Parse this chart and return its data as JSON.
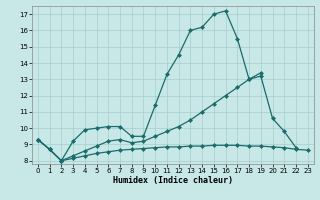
{
  "xlabel": "Humidex (Indice chaleur)",
  "bg_color": "#c8e8e8",
  "grid_color": "#a8cccc",
  "line_color": "#1a6b6b",
  "xlim": [
    -0.5,
    23.5
  ],
  "ylim": [
    7.8,
    17.5
  ],
  "xticks": [
    0,
    1,
    2,
    3,
    4,
    5,
    6,
    7,
    8,
    9,
    10,
    11,
    12,
    13,
    14,
    15,
    16,
    17,
    18,
    19,
    20,
    21,
    22,
    23
  ],
  "yticks": [
    8,
    9,
    10,
    11,
    12,
    13,
    14,
    15,
    16,
    17
  ],
  "line1_x": [
    0,
    1,
    2,
    3,
    4,
    5,
    6,
    7,
    8,
    9,
    10,
    11,
    12,
    13,
    14,
    15,
    16,
    17,
    18,
    19
  ],
  "line1_y": [
    9.3,
    8.7,
    8.0,
    9.2,
    9.9,
    10.0,
    10.1,
    10.1,
    9.5,
    9.5,
    11.4,
    13.3,
    14.5,
    16.0,
    16.2,
    17.0,
    17.2,
    15.5,
    13.0,
    13.4
  ],
  "line2_x": [
    0,
    1,
    2,
    3,
    4,
    5,
    6,
    7,
    8,
    9,
    10,
    11,
    12,
    13,
    14,
    15,
    16,
    17,
    18,
    19,
    20,
    21,
    22
  ],
  "line2_y": [
    9.3,
    8.7,
    8.0,
    8.3,
    8.6,
    8.9,
    9.2,
    9.3,
    9.1,
    9.2,
    9.5,
    9.8,
    10.1,
    10.5,
    11.0,
    11.5,
    12.0,
    12.5,
    13.0,
    13.2,
    10.6,
    9.8,
    8.8
  ],
  "line3_x": [
    0,
    1,
    2,
    3,
    4,
    5,
    6,
    7,
    8,
    9,
    10,
    11,
    12,
    13,
    14,
    15,
    16,
    17,
    18,
    19,
    20,
    21,
    22,
    23
  ],
  "line3_y": [
    9.3,
    8.7,
    8.0,
    8.15,
    8.3,
    8.45,
    8.55,
    8.65,
    8.7,
    8.75,
    8.8,
    8.85,
    8.85,
    8.9,
    8.9,
    8.95,
    8.95,
    8.95,
    8.9,
    8.9,
    8.85,
    8.8,
    8.7,
    8.65
  ]
}
